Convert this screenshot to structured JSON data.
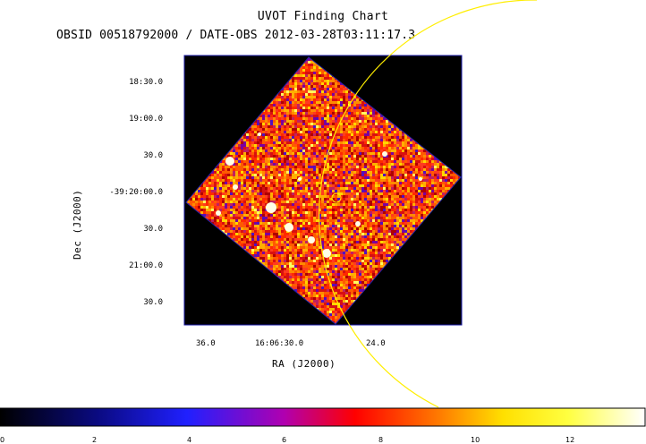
{
  "header": {
    "title": "UVOT Finding Chart",
    "subtitle": "OBSID 00518792000 / DATE-OBS 2012-03-28T03:11:17.3"
  },
  "axes": {
    "xlabel": "RA (J2000)",
    "ylabel": "Dec (J2000)",
    "ra_ticks": [
      "36.0",
      "16:06:30.0",
      "24.0"
    ],
    "dec_ticks": [
      "18:30.0",
      "19:00.0",
      "30.0",
      "-39:20:00.0",
      "30.0",
      "21:00.0",
      "30.0"
    ]
  },
  "colorbar": {
    "ticks": [
      "0",
      "2",
      "4",
      "6",
      "8",
      "10",
      "12"
    ],
    "range": [
      0,
      13.5
    ]
  },
  "colors": {
    "frame": "#1a1aa6",
    "circle": "#ffee00",
    "background": "#000000"
  }
}
